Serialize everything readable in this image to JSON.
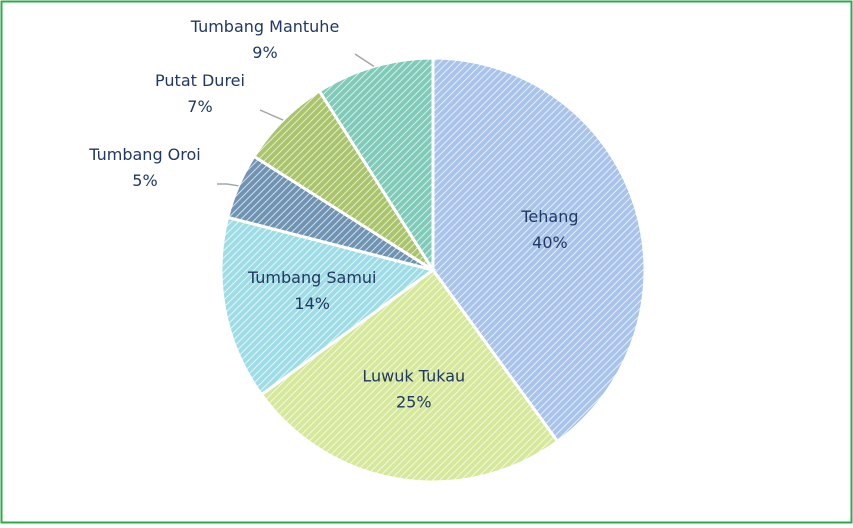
{
  "chart_data": {
    "type": "pie",
    "labels": [
      "Tehang",
      "Luwuk Tukau",
      "Tumbang Samui",
      "Tumbang Oroi",
      "Putat Durei",
      "Tumbang Mantuhe"
    ],
    "values": [
      40,
      25,
      14,
      5,
      7,
      9
    ],
    "value_labels": [
      "40%",
      "25%",
      "14%",
      "5%",
      "7%",
      "9%"
    ],
    "colors": [
      "#a9c4ea",
      "#d6e89a",
      "#9fdde6",
      "#6f94b3",
      "#a9c46a",
      "#7fcab8"
    ]
  }
}
